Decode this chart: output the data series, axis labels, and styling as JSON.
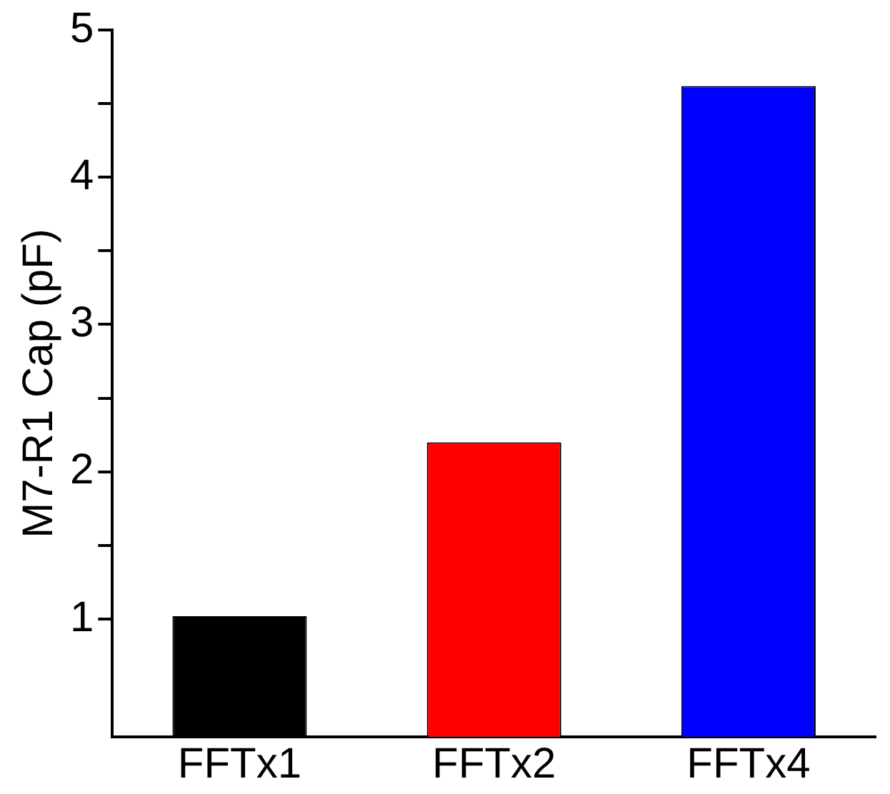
{
  "chart_data": {
    "type": "bar",
    "ylabel": "M7-R1 Cap (pF)",
    "categories": [
      "FFTx1",
      "FFTx2",
      "FFTx4"
    ],
    "values": [
      1.02,
      2.2,
      4.62
    ],
    "colors": [
      "#000000",
      "#ff0000",
      "#0000ff"
    ],
    "ylim": [
      0.2,
      5
    ],
    "yticks": [
      1,
      {
        "value": 1.5,
        "label": null
      },
      2,
      {
        "value": 2.5,
        "label": null
      },
      3,
      {
        "value": 3.5,
        "label": null
      },
      4,
      {
        "value": 4.5,
        "label": null
      },
      5
    ],
    "grid": false,
    "legend": false
  }
}
